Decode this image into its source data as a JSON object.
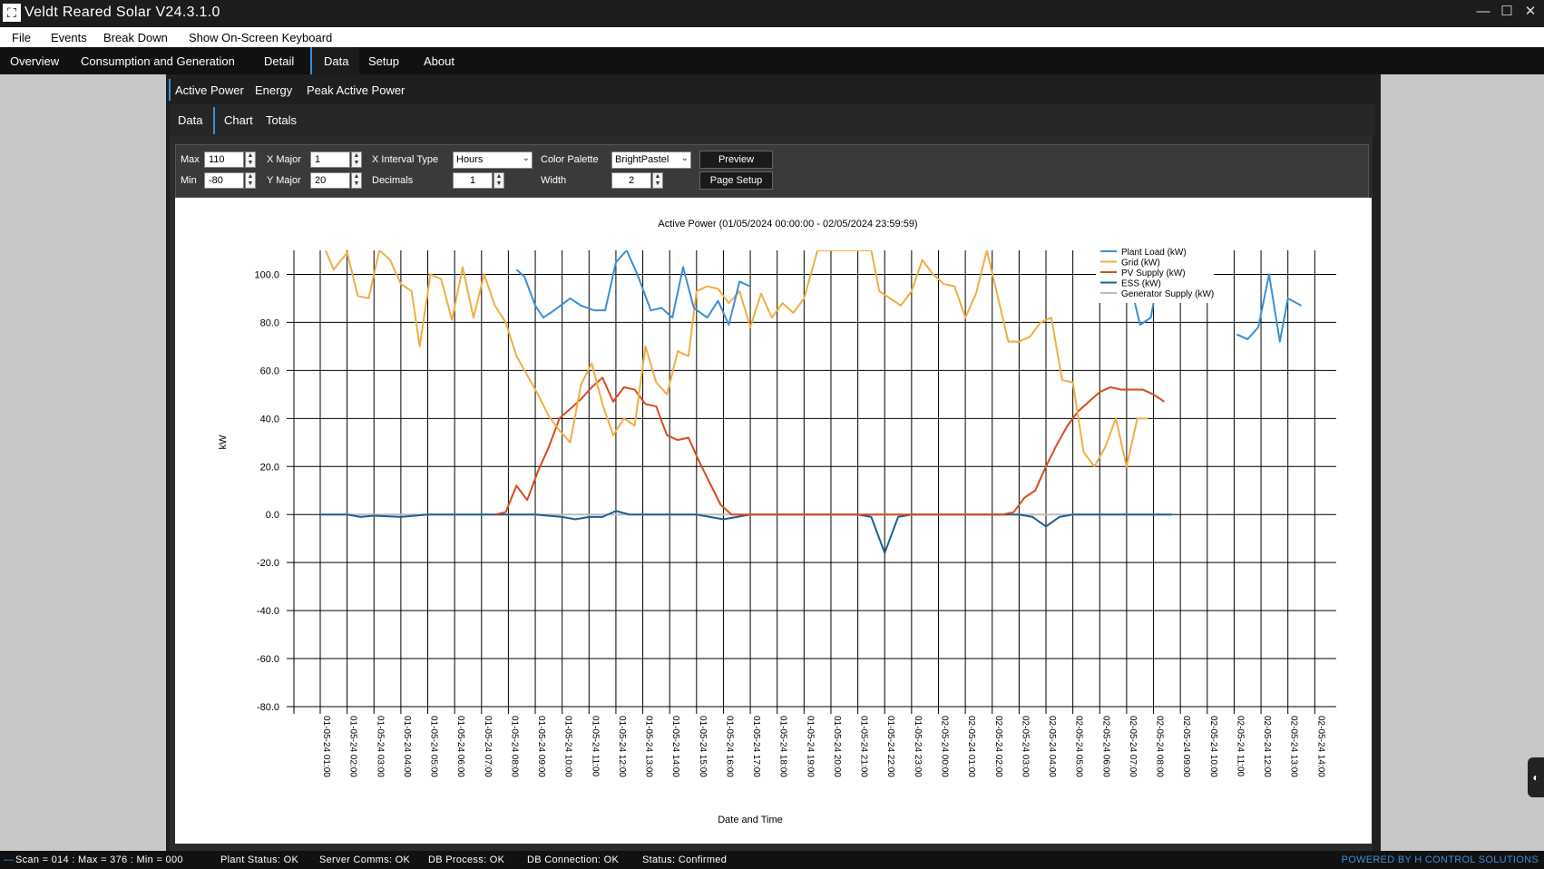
{
  "window": {
    "title": "Veldt Reared Solar V24.3.1.0",
    "min": "—",
    "max": "☐",
    "close": "✕"
  },
  "menu": [
    "File",
    "Events",
    "Break Down",
    "Show On-Screen Keyboard"
  ],
  "nav": [
    "Overview",
    "Consumption and Generation",
    "Detail",
    "Data",
    "Setup",
    "About"
  ],
  "nav_active": "Data",
  "subtabs1": [
    "Active Power",
    "Energy",
    "Peak Active Power"
  ],
  "subtabs2": [
    "Data",
    "Chart",
    "Totals"
  ],
  "controls": {
    "max_label": "Max",
    "max_value": "110",
    "min_label": "Min",
    "min_value": "-80",
    "xmajor_label": "X Major",
    "xmajor_value": "1",
    "ymajor_label": "Y Major",
    "ymajor_value": "20",
    "xinterval_label": "X Interval Type",
    "xinterval_value": "Hours",
    "decimals_label": "Decimals",
    "decimals_value": "1",
    "palette_label": "Color Palette",
    "palette_value": "BrightPastel",
    "width_label": "Width",
    "width_value": "2",
    "preview_label": "Preview",
    "pagesetup_label": "Page Setup"
  },
  "chart_data": {
    "type": "line",
    "title": "Active Power   (01/05/2024 00:00:00 - 02/05/2024 23:59:59)",
    "xlabel": "Date and Time",
    "ylabel": "kW",
    "ylim": [
      -80,
      110
    ],
    "yticks": [
      "100.0",
      "80.0",
      "60.0",
      "40.0",
      "20.0",
      "0.0",
      "-20.0",
      "-40.0",
      "-60.0",
      "-80.0"
    ],
    "x": [
      "01-05-24 01:00",
      "01-05-24 02:00",
      "01-05-24 03:00",
      "01-05-24 04:00",
      "01-05-24 05:00",
      "01-05-24 06:00",
      "01-05-24 07:00",
      "01-05-24 08:00",
      "01-05-24 09:00",
      "01-05-24 10:00",
      "01-05-24 11:00",
      "01-05-24 12:00",
      "01-05-24 13:00",
      "01-05-24 14:00",
      "01-05-24 15:00",
      "01-05-24 16:00",
      "01-05-24 17:00",
      "01-05-24 18:00",
      "01-05-24 19:00",
      "01-05-24 20:00",
      "01-05-24 21:00",
      "01-05-24 22:00",
      "01-05-24 23:00",
      "02-05-24 00:00",
      "02-05-24 01:00",
      "02-05-24 02:00",
      "02-05-24 03:00",
      "02-05-24 04:00",
      "02-05-24 05:00",
      "02-05-24 06:00",
      "02-05-24 07:00",
      "02-05-24 08:00",
      "02-05-24 09:00",
      "02-05-24 10:00",
      "02-05-24 11:00",
      "02-05-24 12:00",
      "02-05-24 13:00",
      "02-05-24 14:00"
    ],
    "legend_position": "top-right",
    "grid": true,
    "series": [
      {
        "name": "Plant Load (kW)",
        "color": "#3a8fd6",
        "values": [
          [
            0.5,
            null
          ],
          [
            7.3,
            102
          ],
          [
            7.6,
            99
          ],
          [
            8,
            87
          ],
          [
            8.3,
            82
          ],
          [
            8.7,
            85
          ],
          [
            9.3,
            90
          ],
          [
            9.7,
            87
          ],
          [
            10.2,
            85
          ],
          [
            10.6,
            85
          ],
          [
            11,
            105
          ],
          [
            11.4,
            110
          ],
          [
            11.8,
            100
          ],
          [
            12.3,
            85
          ],
          [
            12.7,
            86
          ],
          [
            13.1,
            82
          ],
          [
            13.5,
            103
          ],
          [
            13.9,
            86
          ],
          [
            14.4,
            82
          ],
          [
            14.8,
            89
          ],
          [
            15.2,
            79
          ],
          [
            15.6,
            97
          ],
          [
            16,
            95
          ],
          [
            16.3,
            null
          ],
          [
            29.7,
            null
          ],
          [
            30.1,
            98
          ],
          [
            30.5,
            79
          ],
          [
            30.9,
            82
          ],
          [
            31.3,
            106
          ],
          [
            31.6,
            110
          ],
          [
            31.9,
            null
          ],
          [
            33.8,
            null
          ],
          [
            34.1,
            75
          ],
          [
            34.5,
            73
          ],
          [
            34.9,
            78
          ],
          [
            35.3,
            100
          ],
          [
            35.7,
            72
          ],
          [
            36,
            90
          ],
          [
            36.5,
            87
          ]
        ]
      },
      {
        "name": "Grid (kW)",
        "color": "#f0ae42",
        "values": [
          [
            0.2,
            110
          ],
          [
            0.5,
            102
          ],
          [
            1,
            109
          ],
          [
            1.4,
            91
          ],
          [
            1.8,
            90
          ],
          [
            2.2,
            110
          ],
          [
            2.6,
            106
          ],
          [
            3,
            96
          ],
          [
            3.4,
            93
          ],
          [
            3.7,
            70
          ],
          [
            4.1,
            100
          ],
          [
            4.5,
            98
          ],
          [
            4.9,
            81
          ],
          [
            5.3,
            103
          ],
          [
            5.7,
            82
          ],
          [
            6.1,
            100
          ],
          [
            6.5,
            87
          ],
          [
            6.9,
            80
          ],
          [
            7.3,
            66
          ],
          [
            7.7,
            58
          ],
          [
            8.1,
            50
          ],
          [
            8.5,
            41
          ],
          [
            8.9,
            35
          ],
          [
            9.3,
            30
          ],
          [
            9.7,
            54
          ],
          [
            10.1,
            63
          ],
          [
            10.5,
            46
          ],
          [
            10.9,
            33
          ],
          [
            11.3,
            40
          ],
          [
            11.7,
            37
          ],
          [
            12.1,
            70
          ],
          [
            12.5,
            55
          ],
          [
            12.9,
            50
          ],
          [
            13.3,
            68
          ],
          [
            13.7,
            66
          ],
          [
            14,
            93
          ],
          [
            14.4,
            95
          ],
          [
            14.8,
            94
          ],
          [
            15.2,
            88
          ],
          [
            15.6,
            93
          ],
          [
            16,
            78
          ],
          [
            16.4,
            92
          ],
          [
            16.8,
            82
          ],
          [
            17.2,
            88
          ],
          [
            17.6,
            84
          ],
          [
            18,
            90
          ],
          [
            18.3,
            102
          ],
          [
            18.5,
            110
          ],
          [
            20.5,
            110
          ],
          [
            20.8,
            93
          ],
          [
            21.2,
            90
          ],
          [
            21.6,
            87
          ],
          [
            22,
            93
          ],
          [
            22.4,
            106
          ],
          [
            22.8,
            100
          ],
          [
            23.2,
            96
          ],
          [
            23.6,
            95
          ],
          [
            24,
            82
          ],
          [
            24.4,
            92
          ],
          [
            24.8,
            110
          ],
          [
            25.2,
            91
          ],
          [
            25.6,
            72
          ],
          [
            26,
            72
          ],
          [
            26.4,
            74
          ],
          [
            26.8,
            80
          ],
          [
            27.2,
            82
          ],
          [
            27.6,
            56
          ],
          [
            28,
            55
          ],
          [
            28.4,
            26
          ],
          [
            28.8,
            20
          ],
          [
            29.2,
            28
          ],
          [
            29.6,
            40
          ],
          [
            30,
            20
          ],
          [
            30.4,
            40
          ],
          [
            30.8,
            40
          ]
        ]
      },
      {
        "name": "PV Supply (kW)",
        "color": "#d94a1e",
        "values": [
          [
            6.5,
            0
          ],
          [
            6.9,
            1
          ],
          [
            7.3,
            12
          ],
          [
            7.7,
            6
          ],
          [
            8.1,
            18
          ],
          [
            8.5,
            28
          ],
          [
            8.9,
            40
          ],
          [
            9.3,
            44
          ],
          [
            9.7,
            48
          ],
          [
            10.1,
            53
          ],
          [
            10.5,
            57
          ],
          [
            10.9,
            47
          ],
          [
            11.3,
            53
          ],
          [
            11.7,
            52
          ],
          [
            12.1,
            46
          ],
          [
            12.5,
            45
          ],
          [
            12.9,
            33
          ],
          [
            13.3,
            31
          ],
          [
            13.7,
            32
          ],
          [
            14.1,
            22
          ],
          [
            14.5,
            13
          ],
          [
            14.9,
            4
          ],
          [
            15.3,
            0
          ],
          [
            25.4,
            0
          ],
          [
            25.8,
            1
          ],
          [
            26.2,
            7
          ],
          [
            26.6,
            10
          ],
          [
            27,
            20
          ],
          [
            27.4,
            29
          ],
          [
            27.8,
            37
          ],
          [
            28.2,
            43
          ],
          [
            28.6,
            47
          ],
          [
            29,
            51
          ],
          [
            29.4,
            53
          ],
          [
            29.8,
            52
          ],
          [
            30.2,
            52
          ],
          [
            30.6,
            52
          ],
          [
            31,
            50
          ],
          [
            31.4,
            47
          ]
        ]
      },
      {
        "name": "ESS (kW)",
        "color": "#1f5f8f",
        "values": [
          [
            0,
            0
          ],
          [
            0.5,
            0
          ],
          [
            1,
            0
          ],
          [
            1.5,
            -1
          ],
          [
            2,
            -0.5
          ],
          [
            3,
            -1
          ],
          [
            4,
            0
          ],
          [
            5,
            0
          ],
          [
            6,
            0
          ],
          [
            7,
            0
          ],
          [
            8,
            0
          ],
          [
            9,
            -1
          ],
          [
            9.5,
            -2
          ],
          [
            10,
            -1
          ],
          [
            10.5,
            -1
          ],
          [
            11,
            1.5
          ],
          [
            11.5,
            0
          ],
          [
            12,
            0
          ],
          [
            13,
            0
          ],
          [
            14,
            0
          ],
          [
            15,
            -2
          ],
          [
            15.5,
            -1
          ],
          [
            16,
            0
          ],
          [
            17,
            0
          ],
          [
            18,
            0
          ],
          [
            19,
            0
          ],
          [
            20,
            0
          ],
          [
            20.5,
            -1
          ],
          [
            21,
            -16
          ],
          [
            21.5,
            -1
          ],
          [
            22,
            0
          ],
          [
            23,
            0
          ],
          [
            24,
            0
          ],
          [
            25,
            0
          ],
          [
            26,
            0
          ],
          [
            26.5,
            -1
          ],
          [
            27,
            -5
          ],
          [
            27.5,
            -1
          ],
          [
            28,
            0
          ],
          [
            29,
            0
          ],
          [
            30,
            0
          ],
          [
            31,
            0
          ],
          [
            31.7,
            0
          ]
        ]
      },
      {
        "name": "Generator Supply (kW)",
        "color": "#bbbbbb",
        "values": [
          [
            0,
            0
          ],
          [
            31.7,
            0
          ]
        ]
      }
    ]
  },
  "status": {
    "scan": "Scan = 014 : Max = 376 : Min = 000",
    "plant": "Plant Status: OK",
    "server": "Server Comms: OK",
    "dbproc": "DB Process:  OK",
    "dbconn": "DB Connection:  OK",
    "status": "Status:  Confirmed",
    "powered": "POWERED BY H CONTROL SOLUTIONS"
  }
}
